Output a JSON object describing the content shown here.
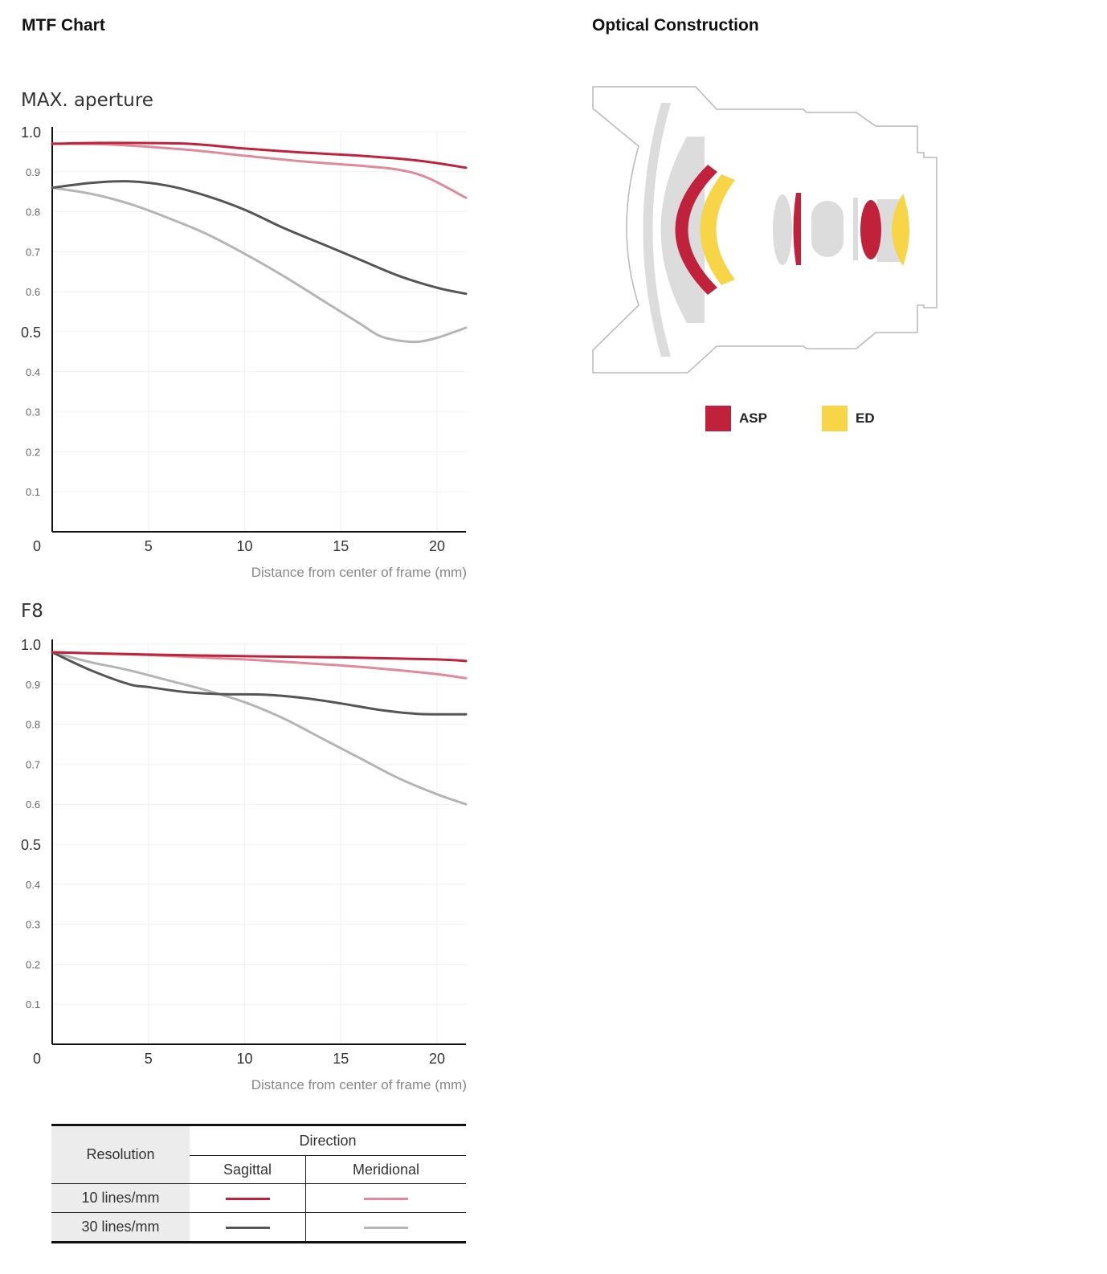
{
  "titles": {
    "mtf": "MTF Chart",
    "optical": "Optical Construction"
  },
  "colors": {
    "sagittal_10": "#c0223b",
    "meridional_10": "#e0899a",
    "sagittal_30": "#555555",
    "meridional_30": "#b5b5b5",
    "asp": "#c0223b",
    "ed": "#f7d547",
    "lens_gray": "#dcdcdc"
  },
  "chart_data": [
    {
      "type": "line",
      "title": "MAX. aperture",
      "xlabel": "Distance from center of frame (mm)",
      "ylabel": "",
      "xlim": [
        0,
        21.5
      ],
      "ylim": [
        0,
        1.0
      ],
      "x_ticks": [
        "5",
        "10",
        "15",
        "20"
      ],
      "x_tick_values": [
        5,
        10,
        15,
        20
      ],
      "x_origin_label": "0",
      "y_ticks_major": [
        "1.0",
        "0.5"
      ],
      "y_ticks_minor": [
        "0.9",
        "0.8",
        "0.7",
        "0.6",
        "0.4",
        "0.3",
        "0.2",
        "0.1"
      ],
      "grid": true,
      "series": [
        {
          "key": "s10",
          "x": [
            0,
            3,
            7,
            10,
            13,
            16,
            19,
            21.5
          ],
          "values": [
            0.97,
            0.972,
            0.97,
            0.958,
            0.948,
            0.94,
            0.928,
            0.91
          ]
        },
        {
          "key": "m10",
          "x": [
            0,
            3,
            7,
            10,
            13,
            16,
            18,
            19.5,
            21.5
          ],
          "values": [
            0.97,
            0.968,
            0.955,
            0.94,
            0.926,
            0.915,
            0.905,
            0.885,
            0.835
          ]
        },
        {
          "key": "s30",
          "x": [
            0,
            2,
            4,
            6,
            8,
            10,
            12,
            14,
            16,
            18,
            20,
            21.5
          ],
          "values": [
            0.86,
            0.872,
            0.876,
            0.865,
            0.84,
            0.805,
            0.76,
            0.72,
            0.68,
            0.64,
            0.61,
            0.595
          ]
        },
        {
          "key": "m30",
          "x": [
            0,
            2,
            4,
            6,
            8,
            10,
            12,
            14,
            15,
            16,
            17,
            18,
            19,
            20,
            21.5
          ],
          "values": [
            0.86,
            0.845,
            0.82,
            0.785,
            0.745,
            0.695,
            0.64,
            0.58,
            0.55,
            0.52,
            0.49,
            0.478,
            0.475,
            0.485,
            0.51
          ]
        }
      ]
    },
    {
      "type": "line",
      "title": "F8",
      "xlabel": "Distance from center of frame (mm)",
      "ylabel": "",
      "xlim": [
        0,
        21.5
      ],
      "ylim": [
        0,
        1.0
      ],
      "x_ticks": [
        "5",
        "10",
        "15",
        "20"
      ],
      "x_tick_values": [
        5,
        10,
        15,
        20
      ],
      "x_origin_label": "0",
      "y_ticks_major": [
        "1.0",
        "0.5"
      ],
      "y_ticks_minor": [
        "0.9",
        "0.8",
        "0.7",
        "0.6",
        "0.4",
        "0.3",
        "0.2",
        "0.1"
      ],
      "grid": true,
      "series": [
        {
          "key": "s10",
          "x": [
            0,
            5,
            10,
            15,
            20,
            21.5
          ],
          "values": [
            0.98,
            0.974,
            0.97,
            0.967,
            0.962,
            0.958
          ]
        },
        {
          "key": "m10",
          "x": [
            0,
            5,
            10,
            15,
            18,
            20,
            21.5
          ],
          "values": [
            0.98,
            0.973,
            0.962,
            0.947,
            0.935,
            0.925,
            0.915
          ]
        },
        {
          "key": "s30",
          "x": [
            0,
            2,
            4,
            5,
            7,
            9,
            11,
            13,
            15,
            17,
            19,
            21.5
          ],
          "values": [
            0.98,
            0.935,
            0.9,
            0.893,
            0.88,
            0.875,
            0.874,
            0.866,
            0.852,
            0.836,
            0.826,
            0.825
          ]
        },
        {
          "key": "m30",
          "x": [
            0,
            2,
            4,
            6,
            8,
            10,
            12,
            14,
            16,
            18,
            20,
            21.5
          ],
          "values": [
            0.98,
            0.955,
            0.935,
            0.91,
            0.885,
            0.855,
            0.815,
            0.765,
            0.715,
            0.665,
            0.625,
            0.6
          ]
        }
      ]
    }
  ],
  "legend_table": {
    "resolution_header": "Resolution",
    "direction_header": "Direction",
    "sagittal_header": "Sagittal",
    "meridional_header": "Meridional",
    "rows": [
      {
        "label": "10 lines/mm"
      },
      {
        "label": "30 lines/mm"
      }
    ]
  },
  "optical_legend": {
    "asp_label": "ASP",
    "ed_label": "ED"
  }
}
